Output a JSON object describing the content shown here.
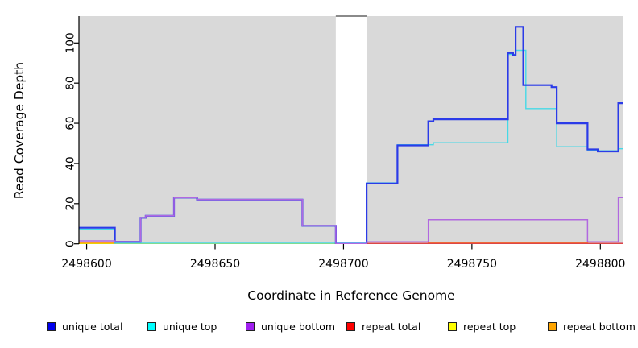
{
  "chart_data": {
    "type": "line",
    "subtype": "step",
    "title": "",
    "xlabel": "Coordinate in Reference Genome",
    "ylabel": "Read Coverage Depth",
    "x_axis": {
      "min": 2498597,
      "max": 2498809,
      "ticks": [
        2498600,
        2498650,
        2498700,
        2498750,
        2498800
      ]
    },
    "y_axis": {
      "min": 0,
      "max": 113,
      "ticks": [
        0,
        20,
        40,
        60,
        80,
        100
      ]
    },
    "panel_bg": "#D9D9D9",
    "gap_region": {
      "x_start": 2498697,
      "x_end": 2498709
    },
    "series": [
      {
        "name": "repeat top",
        "key": "repeat-top",
        "legend_color": "#FFFF00",
        "line_color": "#E0E000",
        "steps": [
          [
            2498597,
            0
          ]
        ]
      },
      {
        "name": "repeat bottom",
        "key": "repeat-bottom",
        "legend_color": "#FFA500",
        "line_color": "#FFA020",
        "steps": [
          [
            2498597,
            1
          ],
          [
            2498611,
            0
          ],
          [
            2498733,
            1
          ],
          [
            2498795,
            0
          ]
        ]
      },
      {
        "name": "repeat total",
        "key": "repeat-total",
        "legend_color": "#FF0000",
        "line_color": "#DC3050",
        "steps": [
          [
            2498597,
            0
          ],
          [
            2498709,
            1
          ]
        ]
      },
      {
        "name": "unique top",
        "key": "unique-top",
        "legend_color": "#00FFFF",
        "line_color": "#45D9E6",
        "steps": [
          [
            2498597,
            7
          ],
          [
            2498611,
            0
          ],
          [
            2498709,
            30
          ],
          [
            2498721,
            49
          ],
          [
            2498733,
            49
          ],
          [
            2498735,
            50
          ],
          [
            2498764,
            94
          ],
          [
            2498767,
            96
          ],
          [
            2498771,
            67
          ],
          [
            2498783,
            48
          ],
          [
            2498795,
            46
          ],
          [
            2498807,
            47
          ]
        ]
      },
      {
        "name": "unique total",
        "key": "unique-total",
        "legend_color": "#0000EE",
        "line_color": "#2B3BE8",
        "steps": [
          [
            2498597,
            8
          ],
          [
            2498611,
            1
          ],
          [
            2498621,
            13
          ],
          [
            2498623,
            14
          ],
          [
            2498634,
            23
          ],
          [
            2498643,
            22
          ],
          [
            2498684,
            9
          ],
          [
            2498697,
            0
          ],
          [
            2498709,
            30
          ],
          [
            2498721,
            49
          ],
          [
            2498733,
            61
          ],
          [
            2498735,
            62
          ],
          [
            2498764,
            95
          ],
          [
            2498766,
            94
          ],
          [
            2498767,
            108
          ],
          [
            2498770,
            79
          ],
          [
            2498781,
            78
          ],
          [
            2498783,
            60
          ],
          [
            2498795,
            47
          ],
          [
            2498799,
            46
          ],
          [
            2498807,
            70
          ]
        ]
      },
      {
        "name": "unique bottom",
        "key": "unique-bottom",
        "legend_color": "#A020F0",
        "line_color": "#B168E0",
        "steps": [
          [
            2498597,
            1.5
          ],
          [
            2498611,
            1
          ],
          [
            2498621,
            13
          ],
          [
            2498623,
            14
          ],
          [
            2498634,
            23
          ],
          [
            2498643,
            22
          ],
          [
            2498684,
            9
          ],
          [
            2498697,
            0
          ],
          [
            2498709,
            1
          ],
          [
            2498733,
            12
          ],
          [
            2498795,
            1
          ],
          [
            2498807,
            23
          ]
        ]
      }
    ],
    "legend": [
      {
        "label": "unique total",
        "color": "#0000EE"
      },
      {
        "label": "unique top",
        "color": "#00FFFF"
      },
      {
        "label": "unique bottom",
        "color": "#A020F0"
      },
      {
        "label": "repeat total",
        "color": "#FF0000"
      },
      {
        "label": "repeat top",
        "color": "#FFFF00"
      },
      {
        "label": "repeat bottom",
        "color": "#FFA500"
      }
    ]
  }
}
